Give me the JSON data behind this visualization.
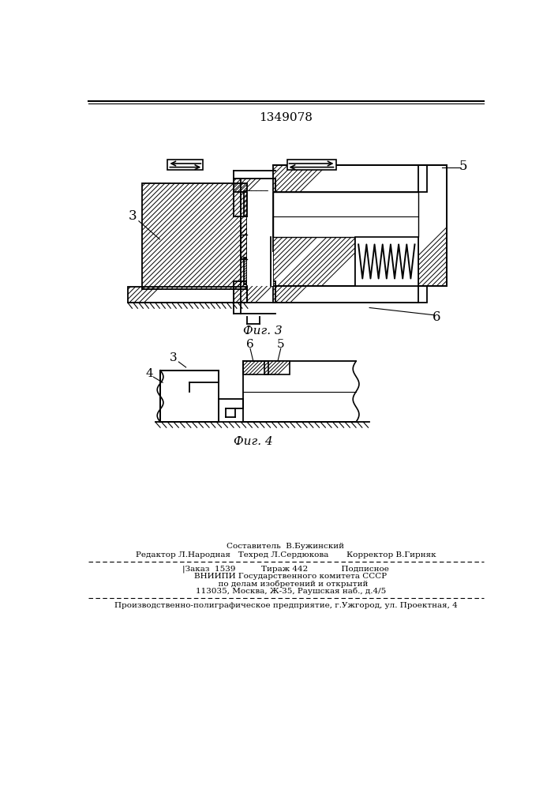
{
  "patent_number": "1349078",
  "bg_color": "#ffffff",
  "line_color": "#000000",
  "fig_width": 7.07,
  "fig_height": 10.0,
  "footer": {
    "line1": "Составитель  В.Бужинский",
    "line2": "Редактор Л.Народная   Техред Л.Сердюкова       Корректор В.Гирняк",
    "line3": "|Заказ  1539         Тираж 442            Подписное",
    "line4": "    ВНИИПИ Государственного комитета СССР",
    "line5": "      по делам изобретений и открытий",
    "line6": "    113035, Москва, Ж-35, Раушская наб., д.4/5",
    "line7": "Производственно-полиграфическое предприятие, г.Ужгород, ул. Проектная, 4"
  }
}
